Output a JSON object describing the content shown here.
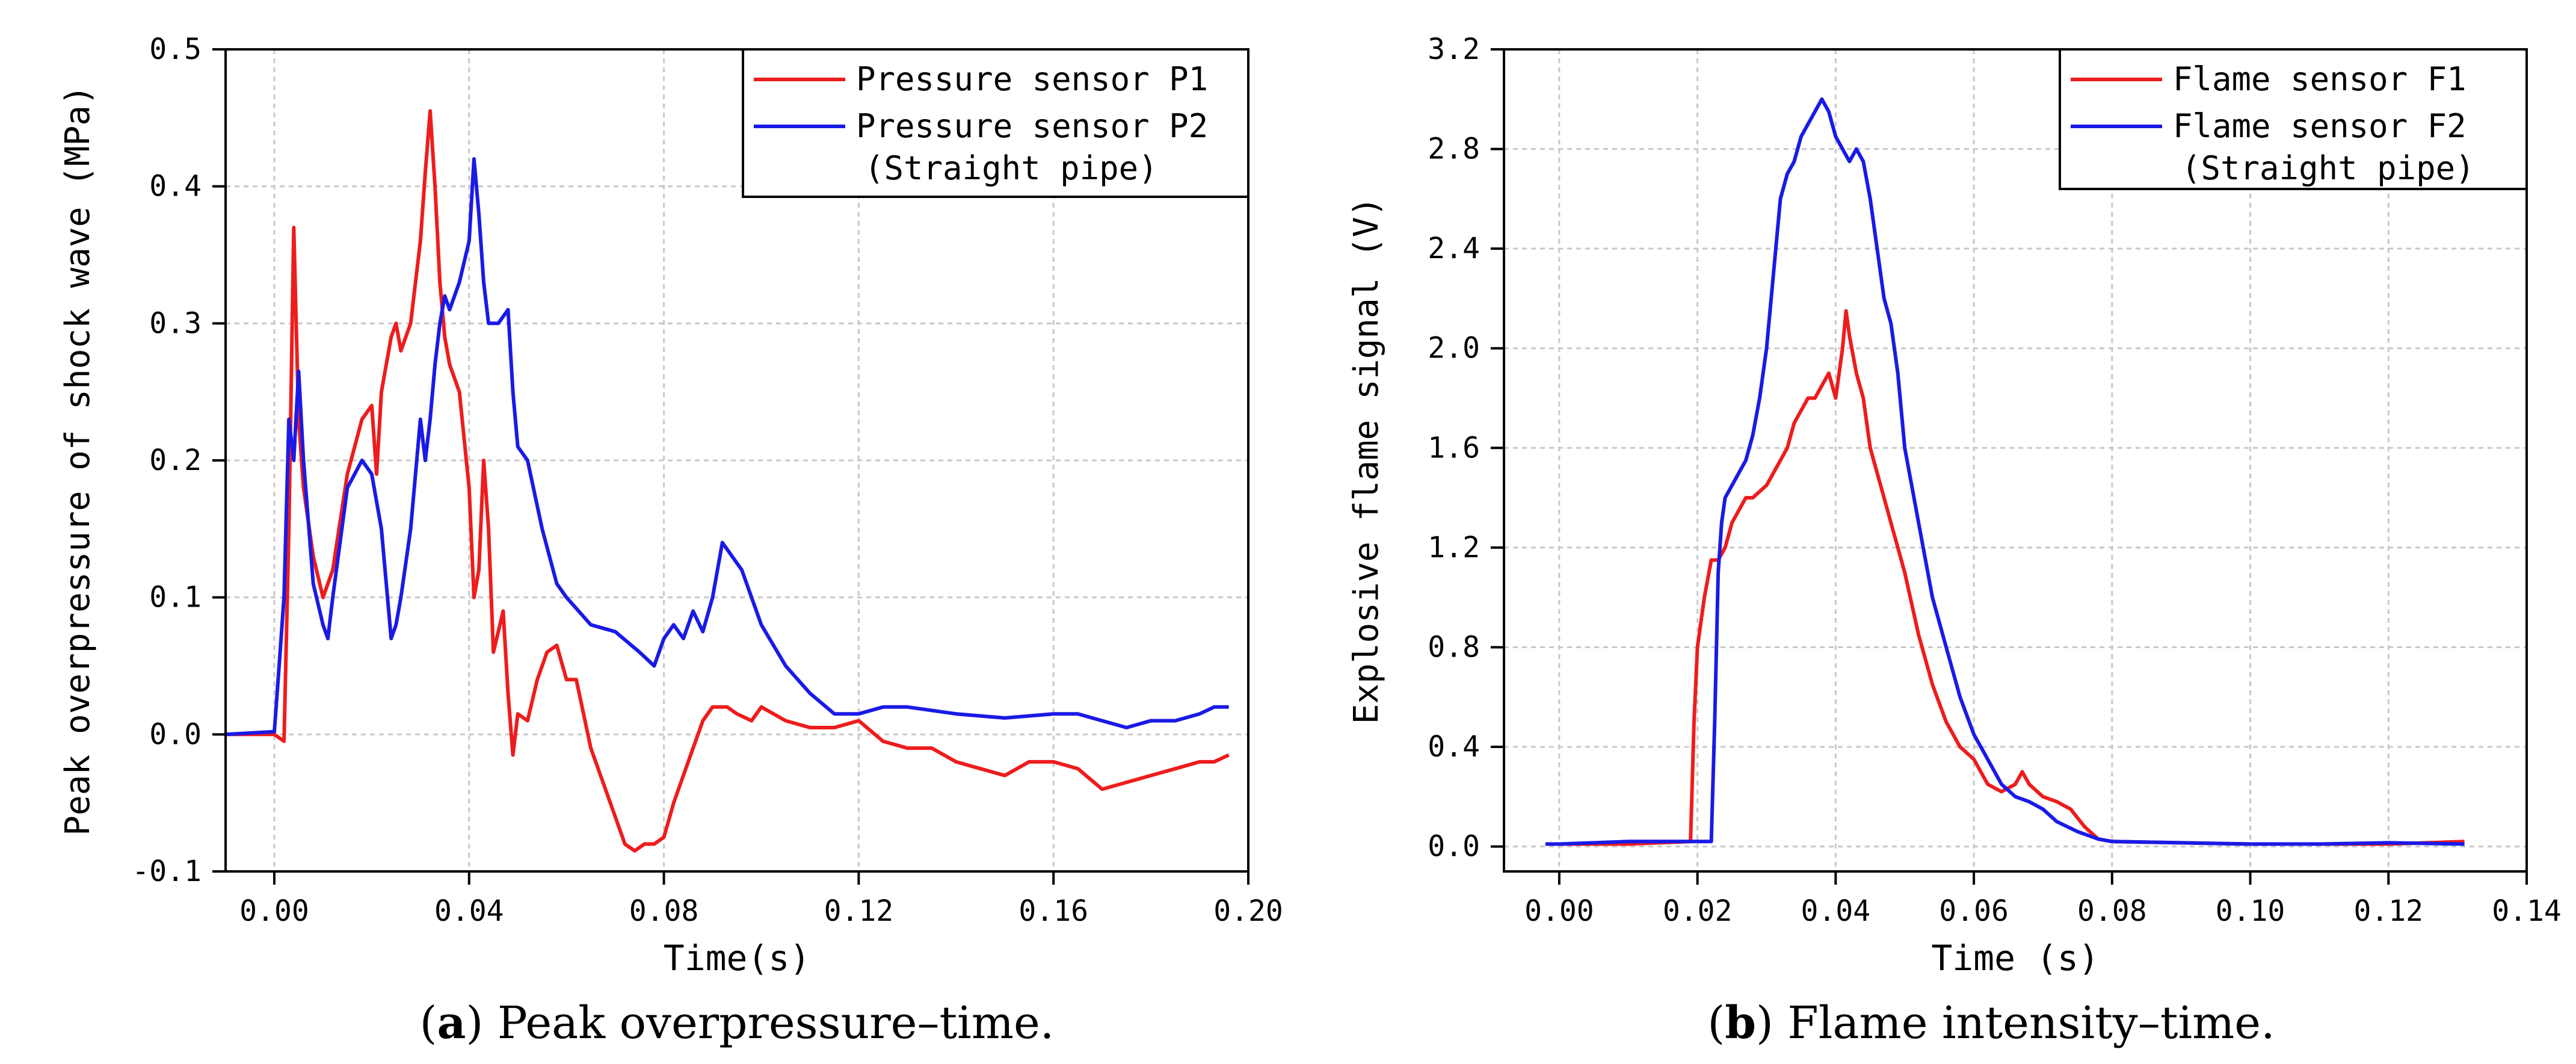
{
  "chart_data": [
    {
      "type": "line",
      "caption_letter": "a",
      "caption_text": ") Peak overpressure–time.",
      "ylabel": "Peak overpressure of shock wave (MPa)",
      "xlabel": "Time(s)",
      "xlim": [
        -0.01,
        0.2
      ],
      "ylim": [
        -0.1,
        0.5
      ],
      "xticks": [
        "0.00",
        "0.04",
        "0.08",
        "0.12",
        "0.16",
        "0.20"
      ],
      "xtick_values": [
        0.0,
        0.04,
        0.08,
        0.12,
        0.16,
        0.2
      ],
      "yticks": [
        "-0.1",
        "0.0",
        "0.1",
        "0.2",
        "0.3",
        "0.4",
        "0.5"
      ],
      "ytick_values": [
        -0.1,
        0.0,
        0.1,
        0.2,
        0.3,
        0.4,
        0.5
      ],
      "grid": true,
      "legend_position": "top-right",
      "legend_note": "(Straight pipe)",
      "series": [
        {
          "name": "Pressure sensor P1",
          "color": "#ee1c1c",
          "x": [
            -0.01,
            0.0,
            0.002,
            0.003,
            0.004,
            0.005,
            0.006,
            0.008,
            0.01,
            0.012,
            0.015,
            0.018,
            0.02,
            0.021,
            0.022,
            0.024,
            0.025,
            0.026,
            0.028,
            0.03,
            0.031,
            0.032,
            0.033,
            0.034,
            0.035,
            0.036,
            0.038,
            0.04,
            0.041,
            0.042,
            0.043,
            0.044,
            0.045,
            0.047,
            0.048,
            0.049,
            0.05,
            0.052,
            0.054,
            0.056,
            0.058,
            0.06,
            0.062,
            0.065,
            0.068,
            0.07,
            0.072,
            0.074,
            0.076,
            0.078,
            0.08,
            0.082,
            0.085,
            0.088,
            0.09,
            0.093,
            0.095,
            0.098,
            0.1,
            0.105,
            0.11,
            0.115,
            0.12,
            0.125,
            0.13,
            0.135,
            0.14,
            0.145,
            0.15,
            0.155,
            0.16,
            0.165,
            0.17,
            0.175,
            0.18,
            0.185,
            0.19,
            0.193,
            0.196
          ],
          "values": [
            0.0,
            0.0,
            -0.005,
            0.15,
            0.37,
            0.23,
            0.18,
            0.13,
            0.1,
            0.12,
            0.19,
            0.23,
            0.24,
            0.19,
            0.25,
            0.29,
            0.3,
            0.28,
            0.3,
            0.36,
            0.41,
            0.455,
            0.4,
            0.33,
            0.29,
            0.27,
            0.25,
            0.18,
            0.1,
            0.12,
            0.2,
            0.15,
            0.06,
            0.09,
            0.03,
            -0.015,
            0.015,
            0.01,
            0.04,
            0.06,
            0.065,
            0.04,
            0.04,
            -0.01,
            -0.04,
            -0.06,
            -0.08,
            -0.085,
            -0.08,
            -0.08,
            -0.075,
            -0.05,
            -0.02,
            0.01,
            0.02,
            0.02,
            0.015,
            0.01,
            0.02,
            0.01,
            0.005,
            0.005,
            0.01,
            -0.005,
            -0.01,
            -0.01,
            -0.02,
            -0.025,
            -0.03,
            -0.02,
            -0.02,
            -0.025,
            -0.04,
            -0.035,
            -0.03,
            -0.025,
            -0.02,
            -0.02,
            -0.015
          ]
        },
        {
          "name": "Pressure sensor P2",
          "color": "#1a1ae6",
          "x": [
            -0.01,
            0.0,
            0.001,
            0.002,
            0.003,
            0.004,
            0.005,
            0.006,
            0.008,
            0.01,
            0.011,
            0.012,
            0.015,
            0.018,
            0.02,
            0.022,
            0.024,
            0.025,
            0.026,
            0.028,
            0.03,
            0.031,
            0.032,
            0.033,
            0.034,
            0.035,
            0.036,
            0.038,
            0.04,
            0.041,
            0.042,
            0.043,
            0.044,
            0.046,
            0.048,
            0.049,
            0.05,
            0.052,
            0.055,
            0.058,
            0.06,
            0.065,
            0.07,
            0.075,
            0.078,
            0.08,
            0.082,
            0.084,
            0.086,
            0.088,
            0.09,
            0.092,
            0.094,
            0.096,
            0.098,
            0.1,
            0.105,
            0.11,
            0.115,
            0.12,
            0.125,
            0.13,
            0.14,
            0.15,
            0.16,
            0.165,
            0.17,
            0.175,
            0.18,
            0.185,
            0.19,
            0.193,
            0.196
          ],
          "values": [
            0.0,
            0.002,
            0.05,
            0.1,
            0.23,
            0.2,
            0.265,
            0.2,
            0.11,
            0.08,
            0.07,
            0.1,
            0.18,
            0.2,
            0.19,
            0.15,
            0.07,
            0.08,
            0.1,
            0.15,
            0.23,
            0.2,
            0.23,
            0.27,
            0.3,
            0.32,
            0.31,
            0.33,
            0.36,
            0.42,
            0.38,
            0.33,
            0.3,
            0.3,
            0.31,
            0.25,
            0.21,
            0.2,
            0.15,
            0.11,
            0.1,
            0.08,
            0.075,
            0.06,
            0.05,
            0.07,
            0.08,
            0.07,
            0.09,
            0.075,
            0.1,
            0.14,
            0.13,
            0.12,
            0.1,
            0.08,
            0.05,
            0.03,
            0.015,
            0.015,
            0.02,
            0.02,
            0.015,
            0.012,
            0.015,
            0.015,
            0.01,
            0.005,
            0.01,
            0.01,
            0.015,
            0.02,
            0.02
          ]
        }
      ]
    },
    {
      "type": "line",
      "caption_letter": "b",
      "caption_text": ") Flame intensity–time.",
      "ylabel": "Explosive flame signal (V)",
      "xlabel": "Time (s)",
      "xlim": [
        -0.008,
        0.14
      ],
      "ylim": [
        -0.1,
        3.2
      ],
      "xticks": [
        "0.00",
        "0.02",
        "0.04",
        "0.06",
        "0.08",
        "0.10",
        "0.12",
        "0.14"
      ],
      "xtick_values": [
        0.0,
        0.02,
        0.04,
        0.06,
        0.08,
        0.1,
        0.12,
        0.14
      ],
      "yticks": [
        "0.0",
        "0.4",
        "0.8",
        "1.2",
        "1.6",
        "2.0",
        "2.4",
        "2.8",
        "3.2"
      ],
      "ytick_values": [
        0.0,
        0.4,
        0.8,
        1.2,
        1.6,
        2.0,
        2.4,
        2.8,
        3.2
      ],
      "grid": true,
      "legend_position": "top-right",
      "legend_note": "(Straight pipe)",
      "series": [
        {
          "name": "Flame sensor F1",
          "color": "#ee1c1c",
          "x": [
            -0.002,
            0.0,
            0.01,
            0.019,
            0.0195,
            0.02,
            0.021,
            0.022,
            0.023,
            0.024,
            0.025,
            0.026,
            0.027,
            0.028,
            0.03,
            0.032,
            0.033,
            0.034,
            0.035,
            0.036,
            0.037,
            0.038,
            0.039,
            0.04,
            0.041,
            0.0415,
            0.042,
            0.043,
            0.044,
            0.045,
            0.046,
            0.047,
            0.048,
            0.05,
            0.052,
            0.054,
            0.056,
            0.058,
            0.06,
            0.062,
            0.064,
            0.066,
            0.067,
            0.068,
            0.07,
            0.072,
            0.074,
            0.076,
            0.078,
            0.08,
            0.09,
            0.1,
            0.11,
            0.12,
            0.131
          ],
          "values": [
            0.01,
            0.01,
            0.01,
            0.02,
            0.5,
            0.8,
            1.0,
            1.15,
            1.15,
            1.2,
            1.3,
            1.35,
            1.4,
            1.4,
            1.45,
            1.55,
            1.6,
            1.7,
            1.75,
            1.8,
            1.8,
            1.85,
            1.9,
            1.8,
            2.0,
            2.15,
            2.05,
            1.9,
            1.8,
            1.6,
            1.5,
            1.4,
            1.3,
            1.1,
            0.85,
            0.65,
            0.5,
            0.4,
            0.35,
            0.25,
            0.22,
            0.25,
            0.3,
            0.25,
            0.2,
            0.18,
            0.15,
            0.08,
            0.03,
            0.02,
            0.015,
            0.01,
            0.01,
            0.01,
            0.02
          ]
        },
        {
          "name": "Flame sensor F2",
          "color": "#1a1ae6",
          "x": [
            -0.002,
            0.0,
            0.01,
            0.02,
            0.022,
            0.0225,
            0.023,
            0.0235,
            0.024,
            0.025,
            0.026,
            0.027,
            0.028,
            0.029,
            0.03,
            0.031,
            0.032,
            0.033,
            0.034,
            0.035,
            0.036,
            0.037,
            0.038,
            0.039,
            0.04,
            0.041,
            0.042,
            0.043,
            0.044,
            0.045,
            0.046,
            0.047,
            0.048,
            0.049,
            0.05,
            0.052,
            0.054,
            0.056,
            0.058,
            0.06,
            0.062,
            0.064,
            0.066,
            0.068,
            0.07,
            0.072,
            0.075,
            0.078,
            0.08,
            0.09,
            0.1,
            0.11,
            0.12,
            0.131
          ],
          "values": [
            0.01,
            0.01,
            0.02,
            0.02,
            0.02,
            0.5,
            1.1,
            1.3,
            1.4,
            1.45,
            1.5,
            1.55,
            1.65,
            1.8,
            2.0,
            2.3,
            2.6,
            2.7,
            2.75,
            2.85,
            2.9,
            2.95,
            3.0,
            2.95,
            2.85,
            2.8,
            2.75,
            2.8,
            2.75,
            2.6,
            2.4,
            2.2,
            2.1,
            1.9,
            1.6,
            1.3,
            1.0,
            0.8,
            0.6,
            0.45,
            0.35,
            0.25,
            0.2,
            0.18,
            0.15,
            0.1,
            0.06,
            0.03,
            0.02,
            0.015,
            0.01,
            0.01,
            0.015,
            0.01
          ]
        }
      ]
    }
  ]
}
